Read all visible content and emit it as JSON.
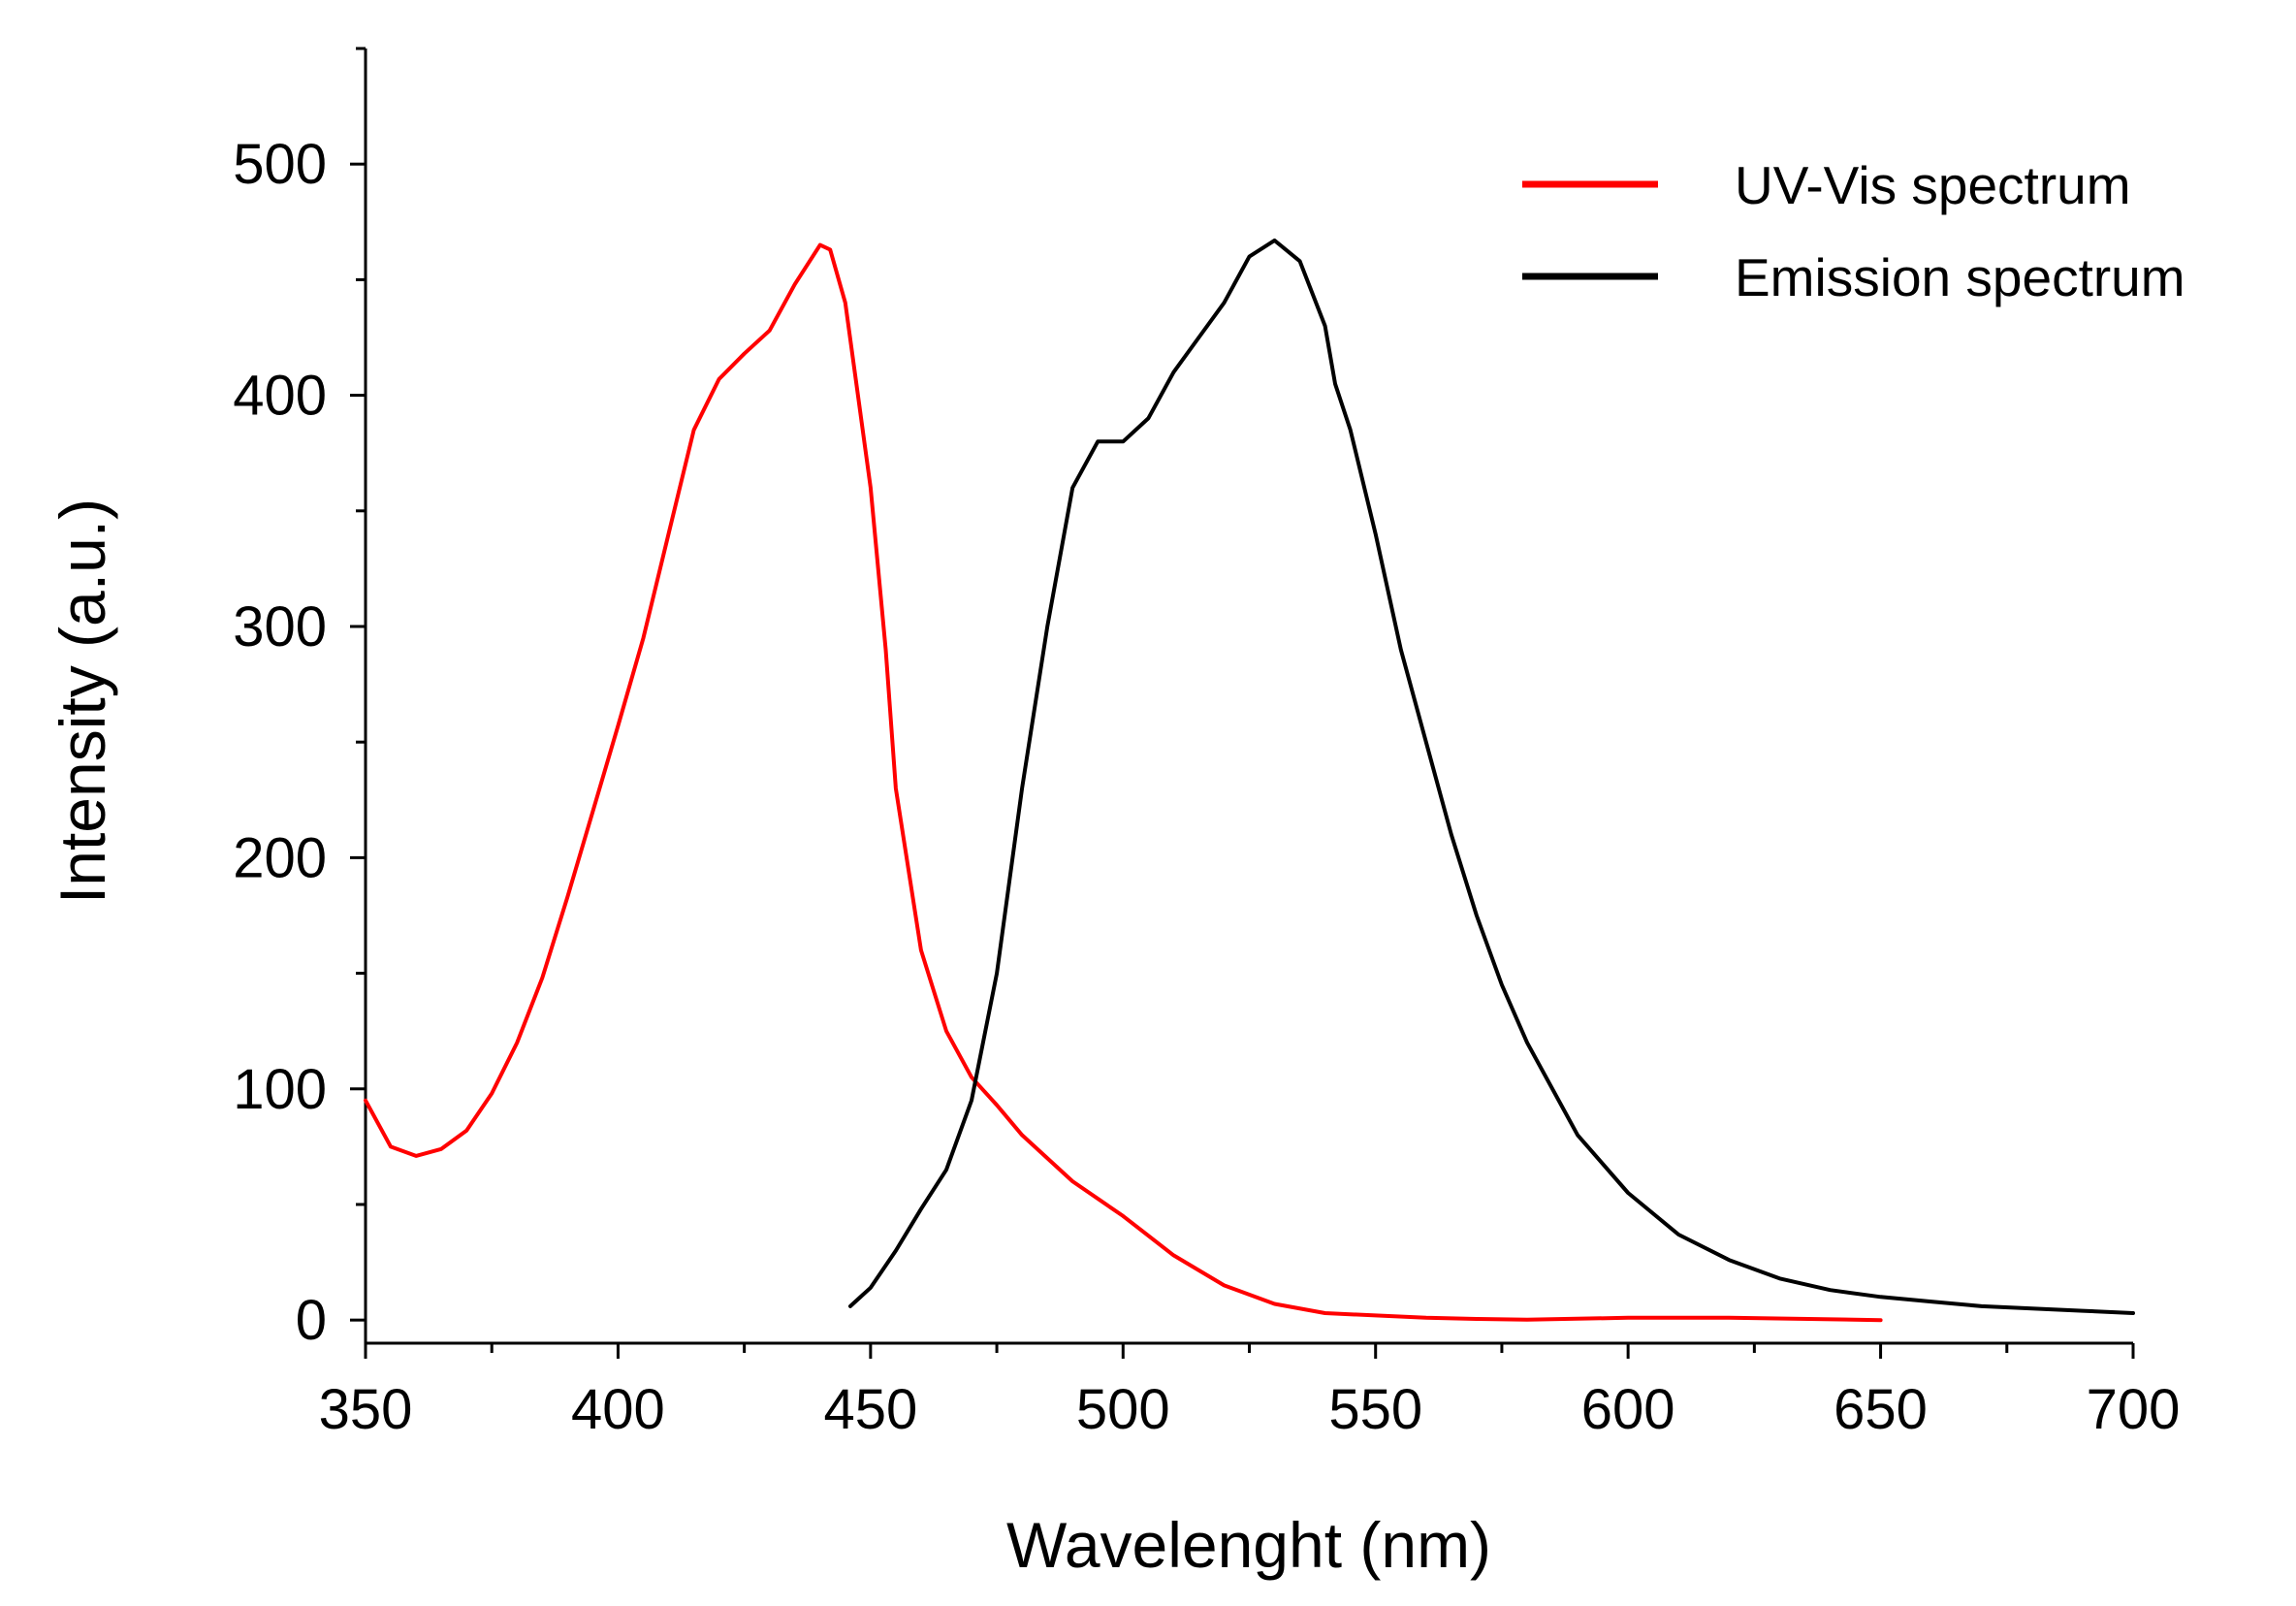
{
  "chart_data": {
    "type": "line",
    "title": "",
    "xlabel": "Wavelenght (nm)",
    "ylabel": "Intensity (a.u.)",
    "xlim": [
      350,
      700
    ],
    "ylim": [
      -10,
      550
    ],
    "x_ticks": [
      350,
      400,
      450,
      500,
      550,
      600,
      650,
      700
    ],
    "y_ticks": [
      0,
      100,
      200,
      300,
      400,
      500
    ],
    "x_minor_step": 25,
    "y_minor_step": 50,
    "grid": false,
    "legend_position": "top-right",
    "series": [
      {
        "name": "UV-Vis spectrum",
        "color": "#ff0000",
        "x": [
          350,
          355,
          360,
          365,
          370,
          375,
          380,
          385,
          390,
          395,
          400,
          405,
          410,
          415,
          420,
          425,
          430,
          435,
          440,
          442,
          445,
          450,
          453,
          455,
          460,
          465,
          470,
          475,
          480,
          490,
          500,
          510,
          520,
          530,
          540,
          550,
          560,
          570,
          580,
          600,
          620,
          650
        ],
        "y": [
          95,
          75,
          71,
          74,
          82,
          98,
          120,
          148,
          183,
          220,
          257,
          295,
          340,
          385,
          407,
          418,
          428,
          448,
          465,
          463,
          440,
          360,
          290,
          230,
          160,
          125,
          105,
          93,
          80,
          60,
          45,
          28,
          15,
          7,
          3,
          2,
          1,
          0.5,
          0.2,
          1,
          1,
          0
        ]
      },
      {
        "name": "Emission spectrum",
        "color": "#000000",
        "x": [
          446,
          450,
          455,
          460,
          465,
          470,
          475,
          480,
          485,
          490,
          495,
          500,
          505,
          510,
          515,
          520,
          525,
          530,
          535,
          540,
          542,
          545,
          550,
          555,
          560,
          565,
          570,
          575,
          580,
          590,
          600,
          610,
          620,
          630,
          640,
          650,
          660,
          670,
          680,
          690,
          700
        ],
        "y": [
          6,
          14,
          30,
          48,
          65,
          95,
          150,
          230,
          300,
          360,
          380,
          380,
          390,
          410,
          425,
          440,
          460,
          467,
          458,
          430,
          405,
          385,
          340,
          290,
          250,
          210,
          175,
          145,
          120,
          80,
          55,
          37,
          26,
          18,
          13,
          10,
          8,
          6,
          5,
          4,
          3
        ]
      }
    ]
  }
}
